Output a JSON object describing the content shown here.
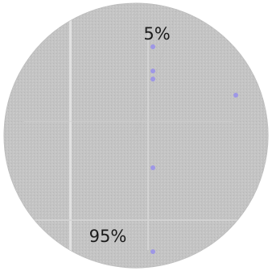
{
  "chart_data": {
    "type": "pie",
    "title": "",
    "slices": [
      {
        "label": "5%",
        "value": 5
      },
      {
        "label": "95%",
        "value": 95
      }
    ],
    "colors": {
      "slice_fill": "#c4c4c4",
      "grain_light": "#dcdcdc",
      "grain_dark": "#a9a9a9",
      "dot": "#9e97e6"
    }
  }
}
